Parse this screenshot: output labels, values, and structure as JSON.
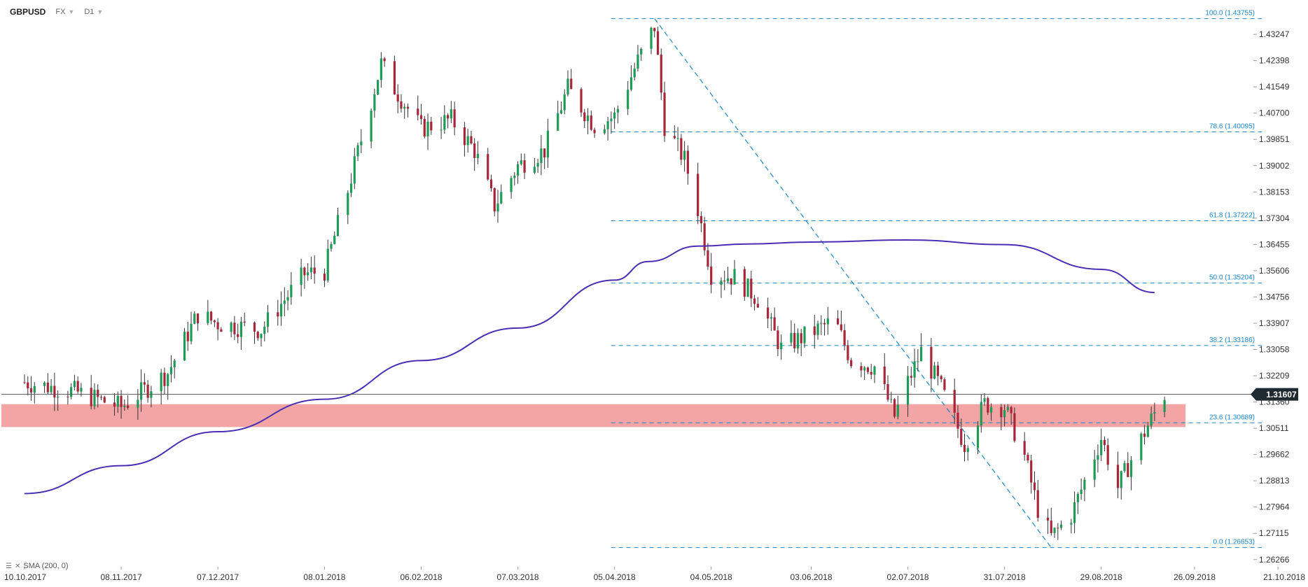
{
  "header": {
    "symbol": "GBPUSD",
    "market": "FX",
    "interval": "D1"
  },
  "indicator": {
    "label": "SMA (200, 0)",
    "color": "#4a2fb4"
  },
  "current_price": {
    "value": 1.31607,
    "label": "1.31607"
  },
  "colors": {
    "bull": "#1e9b57",
    "bear": "#a8263a",
    "wick": "#333333",
    "fib": "#1a86c7",
    "zone": "#f29b9b",
    "sma": "#4a2fb4"
  },
  "chart_data": {
    "type": "candlestick",
    "x_range": [
      "10.10.2017",
      "21.10.2018"
    ],
    "x_ticks": [
      "10.10.2017",
      "08.11.2017",
      "07.12.2017",
      "08.01.2018",
      "06.02.2018",
      "07.03.2018",
      "05.04.2018",
      "04.05.2018",
      "03.06.2018",
      "02.07.2018",
      "31.07.2018",
      "29.08.2018",
      "26.09.2018",
      "21.10.2018"
    ],
    "y_ticks": [
      "1.43247",
      "1.42398",
      "1.41549",
      "1.40700",
      "1.39851",
      "1.39002",
      "1.38153",
      "1.37304",
      "1.36455",
      "1.35606",
      "1.34756",
      "1.33907",
      "1.33058",
      "1.32209",
      "1.31360",
      "1.30511",
      "1.29662",
      "1.28813",
      "1.27964",
      "1.27115",
      "1.26266"
    ],
    "ylim": [
      1.2608,
      1.4386
    ],
    "fibonacci": [
      {
        "level": "100.0",
        "price": 1.43755,
        "label": "100.0 (1.43755)"
      },
      {
        "level": "78.6",
        "price": 1.40095,
        "label": "78.6 (1.40095)"
      },
      {
        "level": "61.8",
        "price": 1.37222,
        "label": "61.8 (1.37222)"
      },
      {
        "level": "50.0",
        "price": 1.35204,
        "label": "50.0 (1.35204)"
      },
      {
        "level": "38.2",
        "price": 1.33186,
        "label": "38.2 (1.33186)"
      },
      {
        "level": "23.6",
        "price": 1.30689,
        "label": "23.6 (1.30689)"
      },
      {
        "level": "0.0",
        "price": 1.26653,
        "label": "0.0 (1.26653)"
      }
    ],
    "fib_start_date": "05.04.2018",
    "trend_line": {
      "from": [
        "17.04.2018",
        1.43755
      ],
      "to": [
        "14.08.2018",
        1.26653
      ]
    },
    "support_zone": {
      "top": 1.3129,
      "bottom": 1.3055,
      "from": "10.10.2017",
      "to": "17.09.2018"
    },
    "sma_200": [
      [
        "10.10.2017",
        1.284
      ],
      [
        "08.11.2017",
        1.293
      ],
      [
        "07.12.2017",
        1.304
      ],
      [
        "08.01.2018",
        1.3145
      ],
      [
        "06.02.2018",
        1.327
      ],
      [
        "07.03.2018",
        1.3375
      ],
      [
        "05.04.2018",
        1.353
      ],
      [
        "15.04.2018",
        1.359
      ],
      [
        "30.04.2018",
        1.364
      ],
      [
        "15.05.2018",
        1.3647
      ],
      [
        "03.06.2018",
        1.3653
      ],
      [
        "02.07.2018",
        1.366
      ],
      [
        "31.07.2018",
        1.3645
      ],
      [
        "29.08.2018",
        1.3565
      ],
      [
        "14.09.2018",
        1.349
      ]
    ],
    "price_path": [
      [
        "10.10.2017",
        1.32
      ],
      [
        "25.10.2017",
        1.317
      ],
      [
        "08.11.2017",
        1.312
      ],
      [
        "22.11.2017",
        1.323
      ],
      [
        "01.12.2017",
        1.342
      ],
      [
        "07.12.2017",
        1.339
      ],
      [
        "20.12.2017",
        1.337
      ],
      [
        "02.01.2018",
        1.355
      ],
      [
        "08.01.2018",
        1.356
      ],
      [
        "15.01.2018",
        1.382
      ],
      [
        "25.01.2018",
        1.423
      ],
      [
        "29.01.2018",
        1.415
      ],
      [
        "06.02.2018",
        1.402
      ],
      [
        "15.02.2018",
        1.405
      ],
      [
        "22.02.2018",
        1.395
      ],
      [
        "28.02.2018",
        1.377
      ],
      [
        "07.03.2018",
        1.39
      ],
      [
        "15.03.2018",
        1.395
      ],
      [
        "22.03.2018",
        1.415
      ],
      [
        "30.03.2018",
        1.403
      ],
      [
        "05.04.2018",
        1.406
      ],
      [
        "12.04.2018",
        1.424
      ],
      [
        "17.04.2018",
        1.435
      ],
      [
        "20.04.2018",
        1.403
      ],
      [
        "26.04.2018",
        1.392
      ],
      [
        "30.04.2018",
        1.376
      ],
      [
        "04.05.2018",
        1.355
      ],
      [
        "11.05.2018",
        1.354
      ],
      [
        "18.05.2018",
        1.347
      ],
      [
        "25.05.2018",
        1.331
      ],
      [
        "03.06.2018",
        1.336
      ],
      [
        "10.06.2018",
        1.34
      ],
      [
        "15.06.2018",
        1.327
      ],
      [
        "22.06.2018",
        1.325
      ],
      [
        "28.06.2018",
        1.309
      ],
      [
        "02.07.2018",
        1.32
      ],
      [
        "06.07.2018",
        1.33
      ],
      [
        "12.07.2018",
        1.318
      ],
      [
        "19.07.2018",
        1.3
      ],
      [
        "25.07.2018",
        1.313
      ],
      [
        "31.07.2018",
        1.312
      ],
      [
        "06.08.2018",
        1.296
      ],
      [
        "10.08.2018",
        1.279
      ],
      [
        "14.08.2018",
        1.27
      ],
      [
        "20.08.2018",
        1.277
      ],
      [
        "24.08.2018",
        1.288
      ],
      [
        "29.08.2018",
        1.302
      ],
      [
        "03.09.2018",
        1.286
      ],
      [
        "07.09.2018",
        1.295
      ],
      [
        "12.09.2018",
        1.306
      ],
      [
        "17.09.2018",
        1.3161
      ]
    ]
  }
}
